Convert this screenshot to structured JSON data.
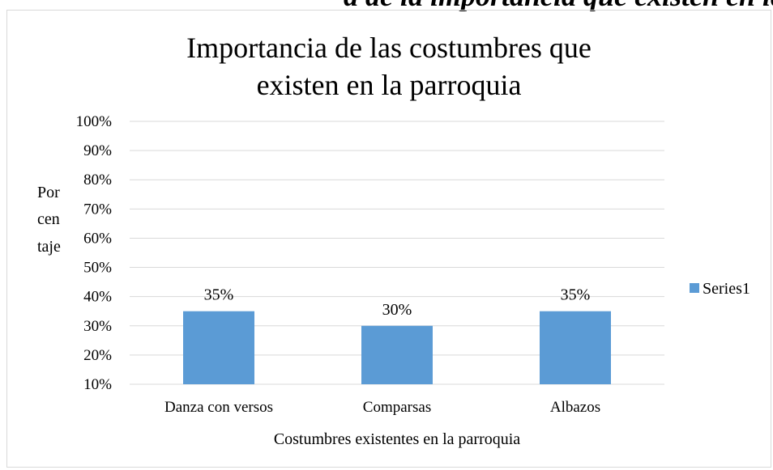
{
  "clipped_header_text": "a de la importancia que existen en la parroquia",
  "chart_data": {
    "type": "bar",
    "title": "Importancia de las costumbres que existen en la parroquia",
    "xlabel": "Costumbres existentes en la parroquia",
    "ylabel_lines": [
      "Por",
      "cen",
      "taje"
    ],
    "categories": [
      "Danza con versos",
      "Comparsas",
      "Albazos"
    ],
    "series": [
      {
        "name": "Series1",
        "values": [
          35,
          30,
          35
        ],
        "value_labels": [
          "35%",
          "30%",
          "35%"
        ],
        "color": "#5b9bd5"
      }
    ],
    "ylim": [
      10,
      100
    ],
    "yticks": [
      10,
      20,
      30,
      40,
      50,
      60,
      70,
      80,
      90,
      100
    ],
    "ytick_labels": [
      "10%",
      "20%",
      "30%",
      "40%",
      "50%",
      "60%",
      "70%",
      "80%",
      "90%",
      "100%"
    ],
    "grid": true,
    "legend_position": "right"
  }
}
